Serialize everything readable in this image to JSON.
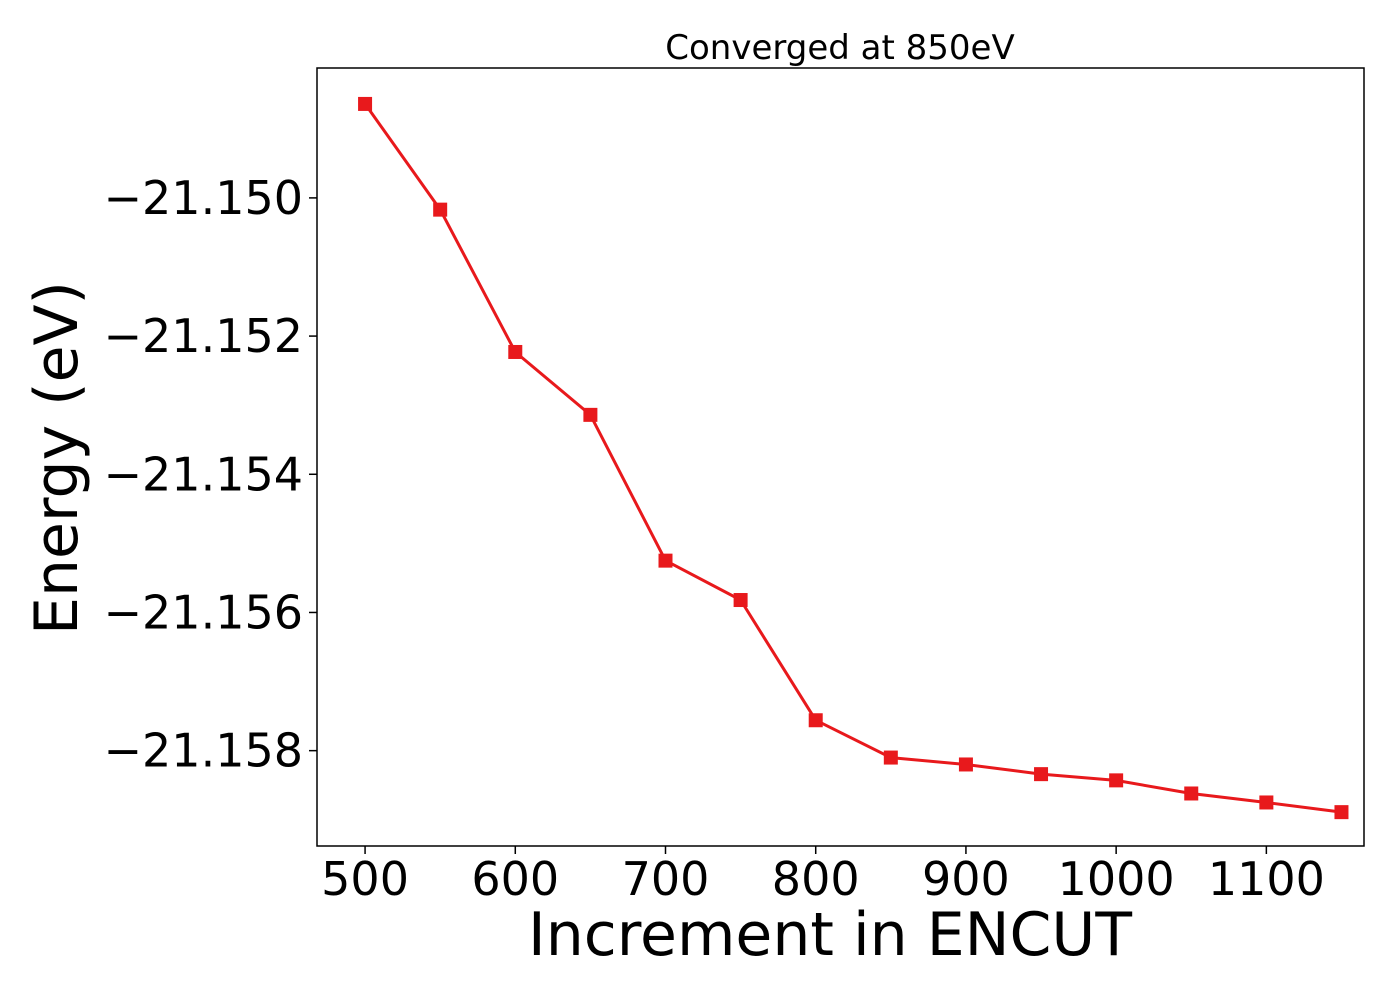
{
  "chart_data": {
    "type": "line",
    "title": "Converged at 850eV",
    "xlabel": "Increment in ENCUT",
    "ylabel": "Energy (eV)",
    "xlim": [
      468,
      1165
    ],
    "ylim": [
      -21.15938,
      -21.14812
    ],
    "xticks": [
      500,
      600,
      700,
      800,
      900,
      1000,
      1100
    ],
    "xtick_labels": [
      "500",
      "600",
      "700",
      "800",
      "900",
      "1000",
      "1100"
    ],
    "yticks": [
      -21.15,
      -21.152,
      -21.154,
      -21.156,
      -21.158
    ],
    "ytick_labels": [
      "−21.150",
      "−21.152",
      "−21.154",
      "−21.156",
      "−21.158"
    ],
    "grid": false,
    "legend": "none",
    "marker": "square",
    "color": "#e8191c",
    "series": [
      {
        "x": [
          500,
          550,
          600,
          650,
          700,
          750,
          800,
          850,
          900,
          950,
          1000,
          1050,
          1100,
          1150
        ],
        "y": [
          -21.14864,
          -21.15017,
          -21.15223,
          -21.15314,
          -21.15525,
          -21.15582,
          -21.15756,
          -21.1581,
          -21.1582,
          -21.15834,
          -21.15843,
          -21.15862,
          -21.15875,
          -21.15889
        ]
      }
    ]
  }
}
